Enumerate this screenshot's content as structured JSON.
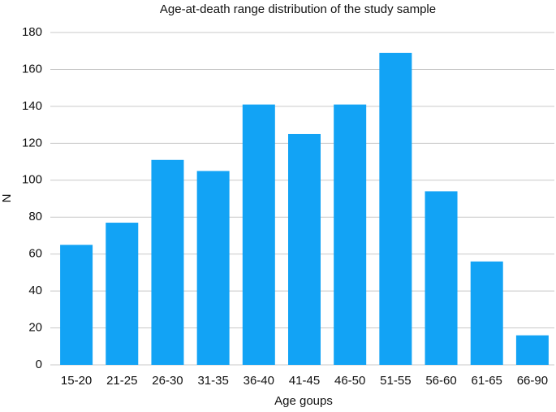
{
  "chart_data": {
    "type": "bar",
    "title": "Age-at-death range distribution of the study sample",
    "x_label": "Age goups",
    "y_label": "N",
    "categories": [
      "15-20",
      "21-25",
      "26-30",
      "31-35",
      "36-40",
      "41-45",
      "46-50",
      "51-55",
      "56-60",
      "61-65",
      "66-90"
    ],
    "values": [
      65,
      77,
      111,
      105,
      141,
      125,
      141,
      169,
      94,
      56,
      16
    ],
    "color": "#12a3f5",
    "ylim": [
      0,
      180
    ],
    "yticks": [
      0,
      20,
      40,
      60,
      80,
      100,
      120,
      140,
      160,
      180
    ],
    "grid": true
  }
}
